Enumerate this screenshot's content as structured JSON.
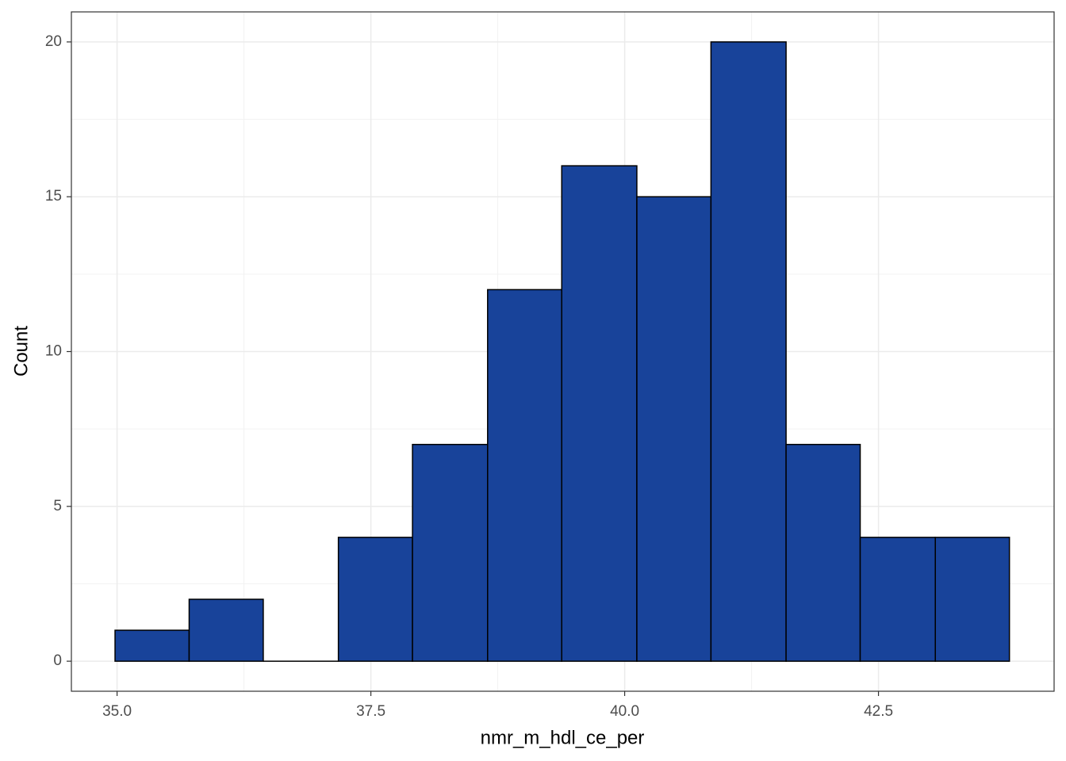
{
  "chart_data": {
    "type": "histogram",
    "x_label": "nmr_m_hdl_ce_per",
    "y_label": "Count",
    "bins": [
      34.98,
      35.71,
      36.44,
      37.18,
      37.91,
      38.65,
      39.38,
      40.12,
      40.85,
      41.59,
      42.32,
      43.06,
      43.79
    ],
    "values": [
      1,
      2,
      0,
      4,
      7,
      12,
      16,
      15,
      20,
      7,
      4,
      4
    ],
    "color": "#18439a",
    "edge_color": "#000000",
    "xlim": [
      34.55,
      44.23
    ],
    "ylim": [
      -0.97,
      20.97
    ],
    "xticks": [
      {
        "value": 35,
        "label": "35.0"
      },
      37.5,
      {
        "value": 40,
        "label": "40.0"
      },
      42.5
    ],
    "yticks": [
      0,
      5,
      10,
      15,
      20
    ],
    "grid": true
  }
}
